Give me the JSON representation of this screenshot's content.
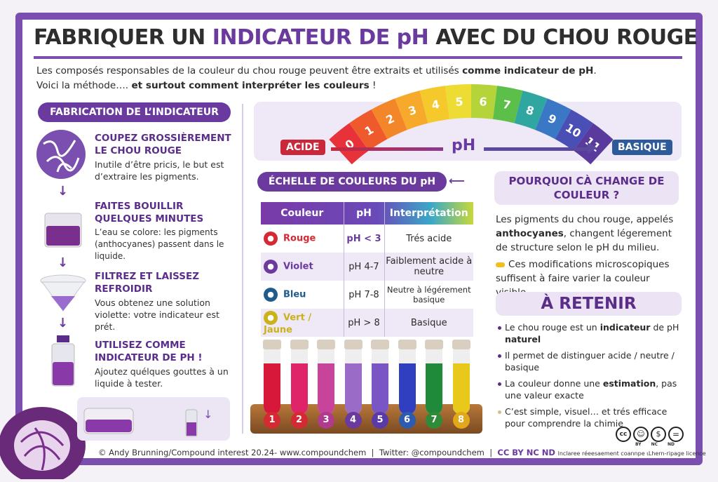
{
  "title": {
    "part1": "FABRIQUER UN ",
    "highlight": "INDICATEUR DE pH",
    "part2": " AVEC DU CHOU ROUGE"
  },
  "intro": {
    "line1": "Les composés responsables de la couleur du chou rouge peuvent être extraits et utilisés ",
    "line1_bold": "comme indicateur de pH",
    "line1_end": ".",
    "line2": "Voici la méthode…. ",
    "line2_bold": "et surtout comment interpréter les couleurs",
    "line2_end": " !"
  },
  "fabrication": {
    "header": "FABRICATION DE L’INDICATEUR",
    "steps": [
      {
        "title": "COUPEZ GROSSIÈREMENT LE CHOU ROUGE",
        "text": "Inutile d’être pricis, le but est d’extraire les pigments.",
        "icon": "cabbage-slices-icon"
      },
      {
        "title": "FAITES BOUILLIR QUELQUES MINUTES",
        "text": "L’eau se colore: les pigments (anthocyanes) passent dans le liquide.",
        "icon": "beaker-icon"
      },
      {
        "title": "FILTREZ ET LAISSEZ REFROIDIR",
        "text": "Vous obtenez une solution violette: votre indicateur est prét.",
        "icon": "funnel-icon"
      },
      {
        "title": "UTILISEZ COMME INDICATEUR DE PH !",
        "text": "Ajoutez quélques gouttes à un liquide à tester.",
        "icon": "bottle-icon"
      }
    ]
  },
  "scale": {
    "values": [
      "0",
      "1",
      "2",
      "3",
      "4",
      "5",
      "6",
      "7",
      "8",
      "9",
      "10",
      "11"
    ],
    "colors": [
      "#e8323a",
      "#ef5a2c",
      "#f4862a",
      "#f6a92a",
      "#f5c92c",
      "#eddc34",
      "#b5d43a",
      "#5cbf4a",
      "#2fa7a0",
      "#3a78c6",
      "#4a4fb5",
      "#5b3a9e"
    ],
    "acid_label": "ACIDE",
    "ph_label": "pH",
    "basic_label": "BASIQUE",
    "acid_color": "#c8283a",
    "basic_color": "#2d5b9a"
  },
  "color_table": {
    "header": "ÉCHELLE DE COULEURS DU pH",
    "columns": [
      "Couleur",
      "pH",
      "Interprétation"
    ],
    "rows": [
      {
        "color": "Rouge",
        "ph": "pH < 3",
        "interpretation": "Trés acide",
        "hex": "#d42a34"
      },
      {
        "color": "Violet",
        "ph": "pH 4-7",
        "interpretation": "Faiblement acide à neutre",
        "hex": "#6a3a9e"
      },
      {
        "color": "Bleu",
        "ph": "pH 7-8",
        "interpretation": "Neutre à légérement basique",
        "hex": "#1f5c8c"
      },
      {
        "color": "Vert / Jaune",
        "ph": "pH > 8",
        "interpretation": "Basique",
        "hex": "#c9b21a"
      }
    ]
  },
  "tubes": {
    "labels": [
      "1",
      "2",
      "3",
      "4",
      "5",
      "6",
      "7",
      "8"
    ],
    "colors": [
      "#d8183a",
      "#e0246a",
      "#c8449a",
      "#9a6cc8",
      "#7a55c4",
      "#2f3fc0",
      "#1f8a3a",
      "#e8c81a"
    ],
    "label_colors": [
      "#d42a34",
      "#d42a34",
      "#b03a8e",
      "#6a3a9e",
      "#5a3aa8",
      "#2d5bb0",
      "#2f8a3a",
      "#e0a81a"
    ]
  },
  "why": {
    "header": "POURQUOI CÀ CHANGE DE COULEUR ?",
    "p1_start": "Les pigments du chou rouge, appelés ",
    "p1_bold": "anthocyanes",
    "p1_end": ", changent légerement de structure selon le pH du milieu.",
    "p2": "Ces modifications microscopiques suffisent à faire varier la couleur visible."
  },
  "retenir": {
    "header": "À RETENIR",
    "b1_start": "Le chou rouge est un ",
    "b1_bold": "indicateur",
    "b1_mid": " de pH ",
    "b1_bold2": "naturel",
    "b2": "Il permet de distinguer acide / neutre / basique",
    "b3_start": "La couleur donne une ",
    "b3_bold": "estimation",
    "b3_end": ", pas une valeur exacte",
    "b4": "C’est simple, visuel… et trés efficace pour comprendre la chimie"
  },
  "footer": {
    "credit": "© Andy Brunning/Compound interest 20.24- www.compoundchem",
    "twitter": "Twitter: @compoundchem",
    "license": "CC BY NC ND",
    "license_note": "lnclaree réeesaement coannpe ιLhern-ripage licence",
    "badges": [
      "BY",
      "NC",
      "ND"
    ]
  },
  "accent": "#7a4fb0"
}
